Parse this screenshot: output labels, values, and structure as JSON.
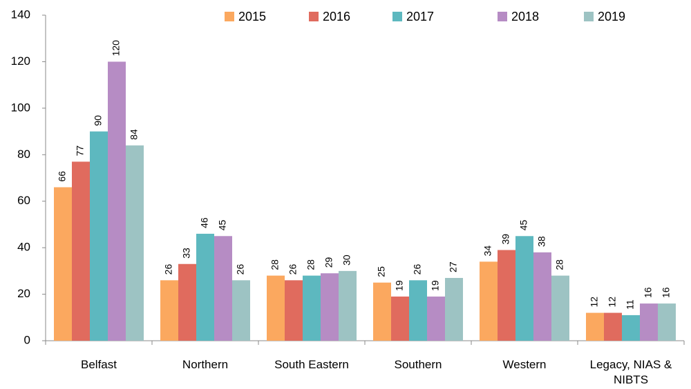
{
  "chart_data": {
    "type": "bar",
    "categories": [
      "Belfast",
      "Northern",
      "South Eastern",
      "Southern",
      "Western",
      "Legacy, NIAS & NIBTS"
    ],
    "series": [
      {
        "name": "2015",
        "color": "#fba85f",
        "values": [
          66,
          26,
          28,
          25,
          34,
          12
        ]
      },
      {
        "name": "2016",
        "color": "#e06b5e",
        "values": [
          77,
          33,
          26,
          19,
          39,
          12
        ]
      },
      {
        "name": "2017",
        "color": "#5db8bf",
        "values": [
          90,
          46,
          28,
          26,
          45,
          11
        ]
      },
      {
        "name": "2018",
        "color": "#b68cc4",
        "values": [
          120,
          45,
          29,
          19,
          38,
          16
        ]
      },
      {
        "name": "2019",
        "color": "#9dc3c3",
        "values": [
          84,
          26,
          30,
          27,
          28,
          16
        ]
      }
    ],
    "ylim": [
      0,
      140
    ],
    "yticks": [
      0,
      20,
      40,
      60,
      80,
      100,
      120,
      140
    ],
    "grid": false,
    "legend": "top"
  }
}
